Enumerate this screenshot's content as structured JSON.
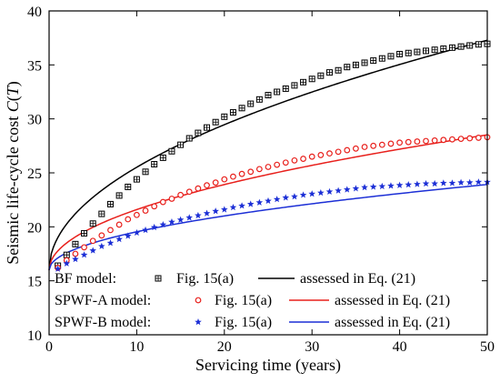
{
  "chart_data": {
    "type": "line",
    "title": "",
    "xlabel": "Servicing time (years)",
    "ylabel_prefix": "Seismic life-cycle cost ",
    "ylabel_italic": "C",
    "ylabel_paren_open": "(",
    "ylabel_italic2": "T",
    "ylabel_paren_close": ")",
    "xlim": [
      0,
      50
    ],
    "ylim": [
      10,
      40
    ],
    "xticks": [
      0,
      10,
      20,
      30,
      40,
      50
    ],
    "yticks": [
      10,
      15,
      20,
      25,
      30,
      35,
      40
    ],
    "grid": false,
    "legend_position": "bottom-left",
    "marker_x": [
      1,
      2,
      3,
      4,
      5,
      6,
      7,
      8,
      9,
      10,
      11,
      12,
      13,
      14,
      15,
      16,
      17,
      18,
      19,
      20,
      21,
      22,
      23,
      24,
      25,
      26,
      27,
      28,
      29,
      30,
      31,
      32,
      33,
      34,
      35,
      36,
      37,
      38,
      39,
      40,
      41,
      42,
      43,
      44,
      45,
      46,
      47,
      48,
      49,
      50
    ],
    "series": [
      {
        "name": "BF model:",
        "marker_label": "Fig. 15(a)",
        "line_label": "assessed in Eq. (21)",
        "color": "#000000",
        "marker": "square",
        "line_a": 16.0,
        "line_b": 3.01,
        "markers": [
          16.4,
          17.4,
          18.4,
          19.4,
          20.3,
          21.2,
          22.1,
          22.9,
          23.7,
          24.4,
          25.1,
          25.8,
          26.4,
          27.0,
          27.6,
          28.2,
          28.7,
          29.2,
          29.7,
          30.2,
          30.6,
          31.0,
          31.4,
          31.8,
          32.2,
          32.5,
          32.8,
          33.1,
          33.4,
          33.7,
          34.0,
          34.3,
          34.5,
          34.8,
          35.0,
          35.2,
          35.4,
          35.6,
          35.8,
          36.0,
          36.1,
          36.2,
          36.3,
          36.4,
          36.5,
          36.6,
          36.7,
          36.8,
          36.9,
          36.95
        ]
      },
      {
        "name": "SPWF-A model:",
        "marker_label": "Fig. 15(a)",
        "line_label": "assessed in Eq. (21)",
        "color": "#e8201c",
        "marker": "circle",
        "line_a": 16.0,
        "line_b": 1.77,
        "markers": [
          16.2,
          16.9,
          17.5,
          18.1,
          18.7,
          19.2,
          19.7,
          20.2,
          20.7,
          21.1,
          21.5,
          21.9,
          22.3,
          22.6,
          22.95,
          23.25,
          23.55,
          23.85,
          24.1,
          24.4,
          24.65,
          24.9,
          25.1,
          25.35,
          25.55,
          25.75,
          25.95,
          26.15,
          26.3,
          26.5,
          26.65,
          26.8,
          26.95,
          27.1,
          27.25,
          27.4,
          27.5,
          27.6,
          27.7,
          27.8,
          27.85,
          27.9,
          27.95,
          28.0,
          28.05,
          28.1,
          28.15,
          28.2,
          28.25,
          28.3
        ]
      },
      {
        "name": "SPWF-B model:",
        "marker_label": "Fig. 15(a)",
        "line_label": "assessed in Eq. (21)",
        "color": "#1c2fd6",
        "marker": "star",
        "line_a": 16.0,
        "line_b": 1.12,
        "markers": [
          16.1,
          16.6,
          17.0,
          17.4,
          17.8,
          18.2,
          18.5,
          18.85,
          19.15,
          19.45,
          19.7,
          19.95,
          20.2,
          20.45,
          20.65,
          20.85,
          21.05,
          21.25,
          21.45,
          21.6,
          21.8,
          21.95,
          22.1,
          22.25,
          22.4,
          22.55,
          22.7,
          22.8,
          22.95,
          23.05,
          23.15,
          23.25,
          23.35,
          23.45,
          23.55,
          23.65,
          23.7,
          23.75,
          23.8,
          23.85,
          23.9,
          23.95,
          24.0,
          24.0,
          24.05,
          24.05,
          24.1,
          24.1,
          24.15,
          24.15
        ]
      }
    ]
  }
}
